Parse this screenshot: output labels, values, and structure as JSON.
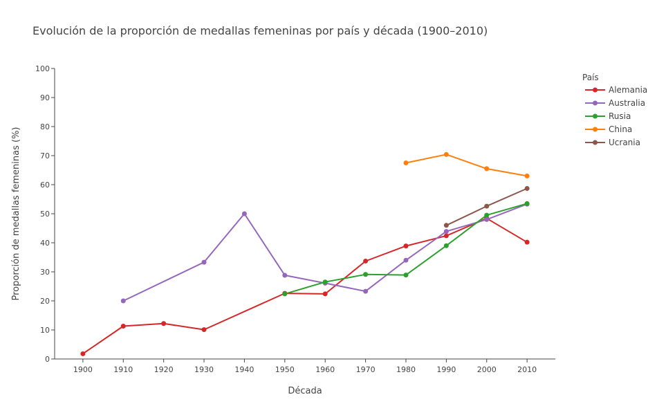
{
  "chart_data": {
    "type": "line",
    "title": "Evolución de la proporción de medallas femeninas por país y década (1900–2010)",
    "xlabel": "Década",
    "ylabel": "Proporción de medallas femeninas (%)",
    "xlim": [
      1893,
      2017
    ],
    "ylim": [
      0,
      100
    ],
    "x_ticks": [
      1900,
      1910,
      1920,
      1930,
      1940,
      1950,
      1960,
      1970,
      1980,
      1990,
      2000,
      2010
    ],
    "y_ticks": [
      0,
      10,
      20,
      30,
      40,
      50,
      60,
      70,
      80,
      90,
      100
    ],
    "grid": false,
    "legend": {
      "title": "País",
      "placement": "right"
    },
    "series": [
      {
        "name": "Alemania",
        "color": "#d62728",
        "points": [
          [
            1900,
            1.8
          ],
          [
            1910,
            11.3
          ],
          [
            1920,
            12.2
          ],
          [
            1930,
            10.1
          ],
          [
            1950,
            22.6
          ],
          [
            1960,
            22.4
          ],
          [
            1970,
            33.7
          ],
          [
            1980,
            38.9
          ],
          [
            1990,
            42.4
          ],
          [
            2000,
            48.4
          ],
          [
            2010,
            40.2
          ]
        ]
      },
      {
        "name": "Australia",
        "color": "#9467bd",
        "points": [
          [
            1910,
            20.0
          ],
          [
            1930,
            33.3
          ],
          [
            1940,
            50.0
          ],
          [
            1950,
            28.8
          ],
          [
            1960,
            26.1
          ],
          [
            1970,
            23.3
          ],
          [
            1980,
            34.0
          ],
          [
            1990,
            43.9
          ],
          [
            2000,
            48.0
          ],
          [
            2010,
            53.3
          ]
        ]
      },
      {
        "name": "Rusia",
        "color": "#2ca02c",
        "points": [
          [
            1950,
            22.4
          ],
          [
            1960,
            26.5
          ],
          [
            1970,
            29.1
          ],
          [
            1980,
            28.9
          ],
          [
            1990,
            39.0
          ],
          [
            2000,
            49.5
          ],
          [
            2010,
            53.5
          ]
        ]
      },
      {
        "name": "China",
        "color": "#ff7f0e",
        "points": [
          [
            1980,
            67.5
          ],
          [
            1990,
            70.4
          ],
          [
            2000,
            65.5
          ],
          [
            2010,
            63.0
          ]
        ]
      },
      {
        "name": "Ucrania",
        "color": "#8c564b",
        "points": [
          [
            1990,
            46.0
          ],
          [
            2000,
            52.6
          ],
          [
            2010,
            58.7
          ]
        ]
      }
    ]
  }
}
